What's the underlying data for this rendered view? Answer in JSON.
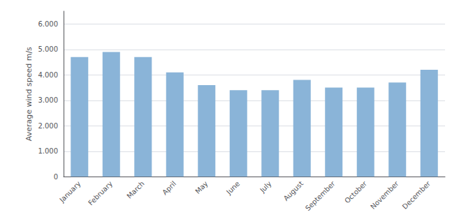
{
  "chart_data": {
    "type": "bar",
    "categories": [
      "January",
      "February",
      "March",
      "April",
      "May",
      "June",
      "July",
      "August",
      "September",
      "October",
      "November",
      "December"
    ],
    "values": [
      4.7,
      4.9,
      4.7,
      4.1,
      3.6,
      3.4,
      3.4,
      3.8,
      3.5,
      3.5,
      3.7,
      4.2
    ],
    "color": "#8ab4d8",
    "ylabel": "Average wind speed m/s",
    "ylim": [
      0,
      6.5
    ],
    "yticks": [
      0,
      {
        "value": 1.0,
        "label": "1.000"
      },
      {
        "value": 2.0,
        "label": "2.000"
      },
      {
        "value": 3.0,
        "label": "3.000"
      },
      {
        "value": 4.0,
        "label": "4.000"
      },
      {
        "value": 5.0,
        "label": "5.000"
      },
      {
        "value": 6.0,
        "label": "6.000"
      }
    ],
    "grid": true
  }
}
